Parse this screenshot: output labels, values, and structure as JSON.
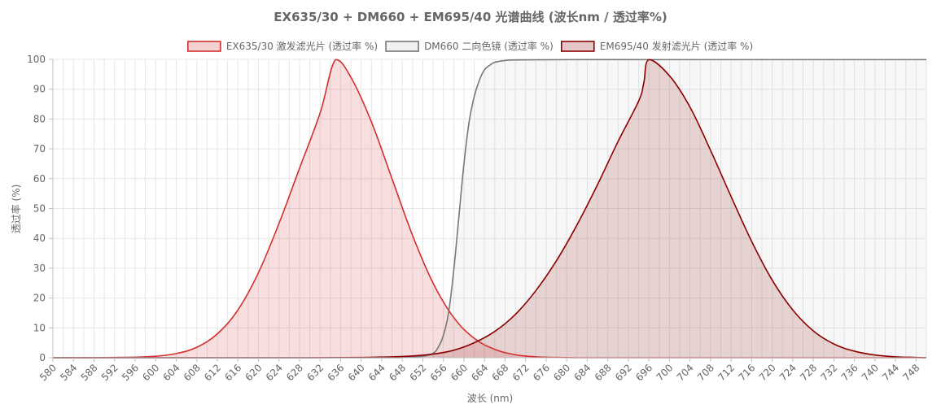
{
  "chart_data": {
    "type": "area",
    "title": "EX635/30 + DM660 + EM695/40 光谱曲线 (波长nm / 透过率%)",
    "xlabel": "波长 (nm)",
    "ylabel": "透过率 (%)",
    "xlim": [
      580,
      750
    ],
    "ylim": [
      0,
      100
    ],
    "x_ticks": [
      "580",
      "584",
      "588",
      "592",
      "596",
      "600",
      "604",
      "608",
      "612",
      "616",
      "620",
      "624",
      "628",
      "632",
      "636",
      "640",
      "644",
      "648",
      "652",
      "656",
      "660",
      "664",
      "668",
      "672",
      "676",
      "680",
      "684",
      "688",
      "692",
      "696",
      "700",
      "704",
      "708",
      "712",
      "716",
      "720",
      "724",
      "728",
      "732",
      "736",
      "740",
      "744",
      "748"
    ],
    "y_ticks": [
      "0",
      "10",
      "20",
      "30",
      "40",
      "50",
      "60",
      "70",
      "80",
      "90",
      "100"
    ],
    "grid": true,
    "legend_position": "top",
    "series": [
      {
        "name": "EX635/30 激发滤光片 (透过率 %)",
        "color": "#d32f2f",
        "fill": "rgba(211,47,47,0.16)",
        "x": [
          580,
          584,
          588,
          592,
          596,
          600,
          604,
          608,
          612,
          616,
          620,
          624,
          628,
          632,
          635,
          638,
          642,
          646,
          650,
          654,
          658,
          662,
          666,
          670,
          674,
          678,
          682,
          690,
          700,
          710,
          720,
          730,
          740,
          750
        ],
        "y": [
          0,
          0,
          0,
          0.1,
          0.2,
          0.5,
          1.4,
          3.5,
          8.0,
          16.0,
          28.5,
          45.0,
          63.5,
          82.0,
          99.9,
          94.0,
          79.0,
          60.0,
          41.0,
          25.0,
          13.5,
          6.5,
          2.8,
          1.0,
          0.3,
          0.1,
          0,
          0,
          0,
          0,
          0,
          0,
          0,
          0
        ]
      },
      {
        "name": "DM660 二向色镜 (透过率 %)",
        "color": "#777777",
        "fill": "rgba(190,190,190,0.12)",
        "x": [
          580,
          640,
          648,
          652,
          654,
          655,
          656,
          657,
          658,
          659,
          660,
          661,
          662,
          663,
          664,
          665,
          666,
          668,
          670,
          680,
          700,
          750
        ],
        "y": [
          0,
          0,
          0.1,
          0.5,
          1.5,
          3.5,
          7.5,
          15.0,
          29.0,
          47.0,
          65.0,
          79.0,
          87.5,
          93.0,
          96.5,
          98.0,
          99.0,
          99.6,
          99.8,
          99.9,
          99.9,
          99.9
        ]
      },
      {
        "name": "EM695/40 发射滤光片 (透过率 %)",
        "color": "#8b0000",
        "fill": "rgba(139,0,0,0.15)",
        "x": [
          580,
          620,
          630,
          640,
          646,
          650,
          654,
          658,
          662,
          666,
          670,
          674,
          678,
          682,
          686,
          690,
          694,
          695,
          696,
          700,
          704,
          708,
          712,
          716,
          720,
          724,
          728,
          732,
          736,
          740,
          744,
          748,
          750
        ],
        "y": [
          0,
          0,
          0,
          0.1,
          0.3,
          0.6,
          1.2,
          2.5,
          5.0,
          8.8,
          14.5,
          22.5,
          32.5,
          44.5,
          58.0,
          72.5,
          86.0,
          92.0,
          99.9,
          94.5,
          84.0,
          69.5,
          54.0,
          39.0,
          26.0,
          16.0,
          9.0,
          4.6,
          2.2,
          0.9,
          0.3,
          0.1,
          0
        ]
      }
    ]
  }
}
